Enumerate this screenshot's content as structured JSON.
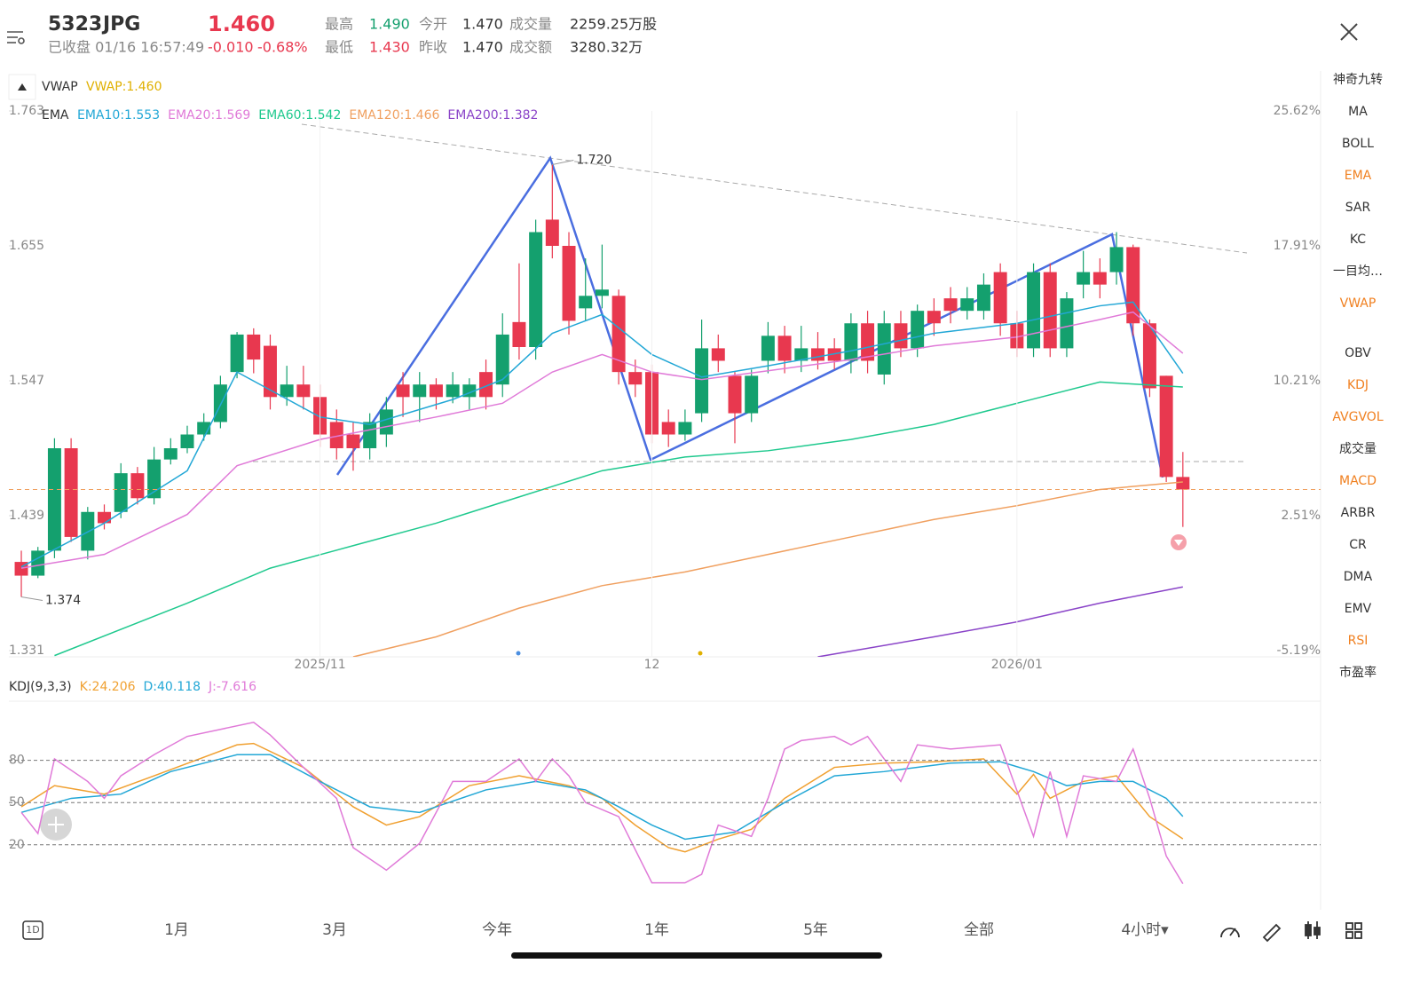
{
  "header": {
    "symbol": "5323",
    "market": "JPG",
    "price": "1.460",
    "status": "已收盘 01/16 16:57:49",
    "change": "-0.010",
    "change_pct": "-0.68%",
    "stats": [
      {
        "label": "最高",
        "value": "1.490",
        "color": "#14a06e"
      },
      {
        "label": "今开",
        "value": "1.470",
        "color": "#333333"
      },
      {
        "label": "成交量",
        "value": "2259.25万股",
        "color": "#333333"
      },
      {
        "label": "最低",
        "value": "1.430",
        "color": "#e8384f"
      },
      {
        "label": "昨收",
        "value": "1.470",
        "color": "#333333"
      },
      {
        "label": "成交额",
        "value": "3280.32万",
        "color": "#333333"
      }
    ]
  },
  "overlay": {
    "name": "VWAP",
    "value": "VWAP:1.460",
    "color": "#e0b000"
  },
  "chart_data": [
    {
      "type": "candlestick",
      "legend_title": "EMA",
      "up_color": "#14a06e",
      "down_color": "#e8384f",
      "categories": [
        null,
        null,
        null,
        null,
        null,
        null,
        null,
        null,
        null,
        null,
        null,
        null,
        null,
        null,
        null,
        null,
        null,
        null,
        "2025/11",
        null,
        null,
        null,
        null,
        null,
        null,
        null,
        null,
        null,
        null,
        null,
        null,
        null,
        null,
        null,
        null,
        null,
        null,
        null,
        "12",
        null,
        null,
        null,
        null,
        null,
        null,
        null,
        null,
        null,
        null,
        null,
        null,
        null,
        null,
        null,
        null,
        null,
        null,
        null,
        null,
        null,
        "2026/01",
        null,
        null,
        null,
        null,
        null,
        null,
        null,
        null,
        null,
        null
      ],
      "candles": [
        [
          1.402,
          1.411,
          1.374,
          1.391
        ],
        [
          1.391,
          1.414,
          1.389,
          1.411
        ],
        [
          1.411,
          1.501,
          1.405,
          1.493
        ],
        [
          1.493,
          1.501,
          1.418,
          1.422
        ],
        [
          1.411,
          1.446,
          1.404,
          1.442
        ],
        [
          1.442,
          1.448,
          1.428,
          1.433
        ],
        [
          1.442,
          1.481,
          1.437,
          1.473
        ],
        [
          1.473,
          1.478,
          1.448,
          1.453
        ],
        [
          1.453,
          1.494,
          1.448,
          1.484
        ],
        [
          1.484,
          1.501,
          1.48,
          1.493
        ],
        [
          1.493,
          1.511,
          1.489,
          1.504
        ],
        [
          1.504,
          1.521,
          1.499,
          1.514
        ],
        [
          1.514,
          1.551,
          1.509,
          1.544
        ],
        [
          1.554,
          1.586,
          1.549,
          1.584
        ],
        [
          1.584,
          1.589,
          1.553,
          1.564
        ],
        [
          1.575,
          1.584,
          1.524,
          1.534
        ],
        [
          1.534,
          1.559,
          1.527,
          1.544
        ],
        [
          1.544,
          1.559,
          1.524,
          1.534
        ],
        [
          1.534,
          1.544,
          1.494,
          1.504
        ],
        [
          1.514,
          1.524,
          1.484,
          1.493
        ],
        [
          1.504,
          1.514,
          1.475,
          1.493
        ],
        [
          1.493,
          1.521,
          1.484,
          1.514
        ],
        [
          1.504,
          1.534,
          1.494,
          1.524
        ],
        [
          1.544,
          1.554,
          1.518,
          1.534
        ],
        [
          1.534,
          1.554,
          1.514,
          1.544
        ],
        [
          1.544,
          1.549,
          1.524,
          1.534
        ],
        [
          1.534,
          1.554,
          1.529,
          1.544
        ],
        [
          1.534,
          1.549,
          1.524,
          1.544
        ],
        [
          1.554,
          1.564,
          1.524,
          1.534
        ],
        [
          1.544,
          1.601,
          1.534,
          1.584
        ],
        [
          1.594,
          1.641,
          1.564,
          1.574
        ],
        [
          1.574,
          1.676,
          1.564,
          1.666
        ],
        [
          1.676,
          1.72,
          1.645,
          1.655
        ],
        [
          1.655,
          1.666,
          1.584,
          1.595
        ],
        [
          1.605,
          1.645,
          1.595,
          1.615
        ],
        [
          1.615,
          1.656,
          1.605,
          1.62
        ],
        [
          1.615,
          1.62,
          1.544,
          1.554
        ],
        [
          1.554,
          1.564,
          1.534,
          1.544
        ],
        [
          1.554,
          1.56,
          1.497,
          1.504
        ],
        [
          1.514,
          1.524,
          1.494,
          1.504
        ],
        [
          1.504,
          1.524,
          1.499,
          1.514
        ],
        [
          1.521,
          1.596,
          1.514,
          1.573
        ],
        [
          1.573,
          1.584,
          1.554,
          1.563
        ],
        [
          1.551,
          1.554,
          1.497,
          1.521
        ],
        [
          1.521,
          1.556,
          1.514,
          1.551
        ],
        [
          1.563,
          1.594,
          1.553,
          1.583
        ],
        [
          1.583,
          1.591,
          1.553,
          1.563
        ],
        [
          1.563,
          1.591,
          1.554,
          1.573
        ],
        [
          1.573,
          1.586,
          1.556,
          1.563
        ],
        [
          1.573,
          1.581,
          1.556,
          1.563
        ],
        [
          1.563,
          1.601,
          1.553,
          1.593
        ],
        [
          1.593,
          1.603,
          1.553,
          1.563
        ],
        [
          1.552,
          1.603,
          1.544,
          1.593
        ],
        [
          1.593,
          1.603,
          1.566,
          1.573
        ],
        [
          1.573,
          1.608,
          1.566,
          1.603
        ],
        [
          1.603,
          1.613,
          1.583,
          1.593
        ],
        [
          1.613,
          1.622,
          1.593,
          1.603
        ],
        [
          1.603,
          1.622,
          1.596,
          1.613
        ],
        [
          1.603,
          1.633,
          1.596,
          1.624
        ],
        [
          1.634,
          1.641,
          1.583,
          1.593
        ],
        [
          1.593,
          1.603,
          1.566,
          1.573
        ],
        [
          1.573,
          1.641,
          1.566,
          1.634
        ],
        [
          1.634,
          1.641,
          1.566,
          1.573
        ],
        [
          1.573,
          1.618,
          1.566,
          1.613
        ],
        [
          1.624,
          1.651,
          1.613,
          1.634
        ],
        [
          1.634,
          1.645,
          1.613,
          1.624
        ],
        [
          1.634,
          1.666,
          1.624,
          1.654
        ],
        [
          1.654,
          1.656,
          1.583,
          1.593
        ],
        [
          1.593,
          1.596,
          1.534,
          1.541
        ],
        [
          1.551,
          1.551,
          1.466,
          1.47
        ],
        [
          1.47,
          1.49,
          1.43,
          1.46
        ]
      ],
      "series": [
        {
          "name": "EMA10:1.553",
          "color": "#22a7d6",
          "x": [
            0,
            5,
            10,
            13,
            18,
            21,
            26,
            29,
            32,
            35,
            38,
            41,
            45,
            50,
            55,
            60,
            65,
            67,
            70
          ],
          "values": [
            1.398,
            1.433,
            1.475,
            1.554,
            1.518,
            1.512,
            1.532,
            1.548,
            1.585,
            1.6,
            1.568,
            1.55,
            1.559,
            1.571,
            1.585,
            1.593,
            1.607,
            1.61,
            1.553
          ]
        },
        {
          "name": "EMA20:1.569",
          "color": "#e07ad8",
          "x": [
            0,
            5,
            10,
            13,
            18,
            25,
            29,
            32,
            35,
            38,
            41,
            45,
            50,
            55,
            60,
            65,
            67,
            70
          ],
          "values": [
            1.397,
            1.408,
            1.44,
            1.479,
            1.5,
            1.518,
            1.529,
            1.554,
            1.568,
            1.554,
            1.548,
            1.555,
            1.564,
            1.575,
            1.582,
            1.596,
            1.602,
            1.569
          ]
        },
        {
          "name": "EMA60:1.542",
          "color": "#1fc98e",
          "x": [
            2,
            10,
            15,
            20,
            25,
            30,
            35,
            40,
            45,
            50,
            55,
            60,
            65,
            70
          ],
          "values": [
            1.327,
            1.369,
            1.397,
            1.415,
            1.433,
            1.454,
            1.475,
            1.486,
            1.491,
            1.5,
            1.512,
            1.529,
            1.546,
            1.542
          ]
        },
        {
          "name": "EMA120:1.466",
          "color": "#f0a060",
          "x": [
            20,
            25,
            30,
            35,
            40,
            45,
            50,
            55,
            60,
            65,
            70
          ],
          "values": [
            1.326,
            1.342,
            1.365,
            1.383,
            1.394,
            1.408,
            1.422,
            1.436,
            1.447,
            1.46,
            1.466
          ]
        },
        {
          "name": "EMA200:1.382",
          "color": "#8a44c8",
          "x": [
            48,
            55,
            60,
            65,
            70
          ],
          "values": [
            1.326,
            1.342,
            1.354,
            1.369,
            1.382
          ]
        }
      ],
      "last_price": 1.46,
      "last_color": "#f0a060",
      "annotations": [
        {
          "label": "1.720",
          "x": 32,
          "y": 1.72
        },
        {
          "label": "1.374",
          "x": 0,
          "y": 1.374
        }
      ],
      "xlim": [
        -0.75,
        78.3
      ],
      "ylim": [
        1.331,
        1.763
      ],
      "yticks": [
        1.763,
        1.655,
        1.547,
        1.439,
        1.331
      ],
      "y2lim": [
        -5.19,
        25.62
      ],
      "y2ticks": [
        {
          "value": 25.62,
          "label": "25.62%"
        },
        {
          "value": 17.91,
          "label": "17.91%"
        },
        {
          "value": 10.21,
          "label": "10.21%"
        },
        {
          "value": 2.51,
          "label": "2.51%"
        },
        {
          "value": -5.19,
          "label": "-5.19%"
        }
      ]
    },
    {
      "type": "line",
      "title": "KDJ(9,3,3)",
      "xlim": [
        -0.75,
        78.3
      ],
      "ylim": [
        -23,
        122
      ],
      "yticks": [
        80,
        50,
        20
      ],
      "series": [
        {
          "name": "K:24.206",
          "color": "#f0a030",
          "x": [
            0,
            2,
            5,
            8,
            13,
            14,
            17,
            20,
            22,
            24,
            27,
            30,
            33,
            35,
            37,
            39,
            40,
            42,
            44,
            46,
            49,
            52,
            55,
            58,
            60,
            61,
            62,
            64,
            66,
            68,
            70
          ],
          "values": [
            47,
            62,
            56,
            69,
            91,
            92,
            75,
            47,
            34,
            40,
            62,
            69,
            62,
            53,
            34,
            18,
            15,
            24,
            31,
            53,
            75,
            78,
            79,
            81,
            56,
            70,
            53,
            65,
            69,
            40,
            24.206
          ]
        },
        {
          "name": "D:40.118",
          "color": "#22a7d6",
          "x": [
            0,
            3,
            6,
            9,
            13,
            15,
            18,
            21,
            24,
            28,
            31,
            34,
            36,
            38,
            40,
            43,
            46,
            49,
            52,
            56,
            59,
            61,
            63,
            65,
            67,
            69,
            70
          ],
          "values": [
            43,
            53,
            56,
            72,
            84,
            84,
            65,
            47,
            43,
            59,
            65,
            59,
            47,
            34,
            24,
            29,
            50,
            69,
            72,
            78,
            79,
            72,
            62,
            65,
            65,
            53,
            40.118
          ]
        },
        {
          "name": "J:-7.616",
          "color": "#e07ad8",
          "x": [
            0,
            1,
            2,
            4,
            5,
            6,
            8,
            10,
            12,
            14,
            15,
            17,
            19,
            20,
            22,
            24,
            26,
            28,
            30,
            31,
            32,
            33,
            34,
            36,
            38,
            40,
            41,
            42,
            44,
            45,
            46,
            47,
            49,
            50,
            51,
            53,
            54,
            56,
            59,
            61,
            62,
            63,
            64,
            66,
            67,
            68,
            69,
            70
          ],
          "values": [
            43,
            28,
            81,
            65,
            53,
            69,
            84,
            97,
            102,
            107,
            98,
            75,
            53,
            18,
            2,
            21,
            65,
            65,
            81,
            65,
            81,
            69,
            50,
            40,
            -7,
            -7,
            -1,
            34,
            26,
            53,
            88,
            94,
            97,
            91,
            97,
            65,
            91,
            88,
            91,
            26,
            72,
            26,
            69,
            65,
            88,
            53,
            12,
            -7.616
          ]
        }
      ]
    }
  ],
  "indicators": [
    {
      "label": "神奇九转",
      "active": false
    },
    {
      "label": "MA",
      "active": false
    },
    {
      "label": "BOLL",
      "active": false
    },
    {
      "label": "EMA",
      "active": true
    },
    {
      "label": "SAR",
      "active": false
    },
    {
      "label": "KC",
      "active": false
    },
    {
      "label": "一目均…",
      "active": false
    },
    {
      "label": "VWAP",
      "active": true
    },
    {
      "label": "OBV",
      "active": false
    },
    {
      "label": "KDJ",
      "active": true
    },
    {
      "label": "AVGVOL",
      "active": true
    },
    {
      "label": "成交量",
      "active": false
    },
    {
      "label": "MACD",
      "active": true
    },
    {
      "label": "ARBR",
      "active": false
    },
    {
      "label": "CR",
      "active": false
    },
    {
      "label": "DMA",
      "active": false
    },
    {
      "label": "EMV",
      "active": false
    },
    {
      "label": "RSI",
      "active": true
    },
    {
      "label": "市盈率",
      "active": false
    }
  ],
  "tabs": [
    "1D",
    "1月",
    "3月",
    "今年",
    "1年",
    "5年",
    "全部",
    "4小时▾"
  ]
}
